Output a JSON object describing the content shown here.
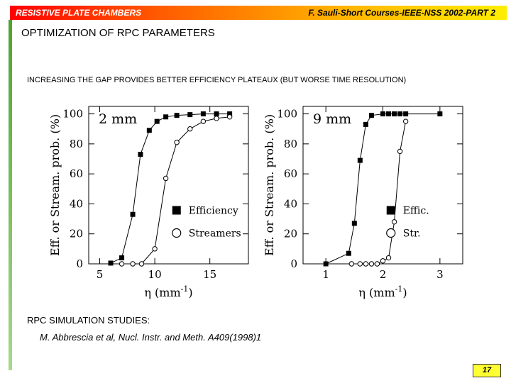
{
  "header": {
    "left": "RESISTIVE PLATE CHAMBERS",
    "right": "F. Sauli-Short Courses-IEEE-NSS 2002-PART 2"
  },
  "slide": {
    "title": "OPTIMIZATION OF RPC PARAMETERS",
    "subtitle": "INCREASING THE GAP PROVIDES BETTER EFFICIENCY PLATEAUX (BUT WORSE TIME RESOLUTION)",
    "sim_heading": "RPC SIMULATION STUDIES:",
    "reference": "M. Abbrescia et al, Nucl. Instr. and Meth. A409(1998)1",
    "page_number": "17"
  },
  "chart_data": [
    {
      "type": "scatter",
      "annotation": "2 mm",
      "xlabel": "η (mm",
      "xlabel_sup": "-1",
      "xlabel_end": ")",
      "ylabel": "Eff. or Stream. prob. (%)",
      "xlim": [
        4,
        18.5
      ],
      "ylim": [
        0,
        105
      ],
      "xticks": [
        5,
        10,
        15
      ],
      "yticks": [
        0,
        20,
        40,
        60,
        80,
        100
      ],
      "legend_position": "lower-right",
      "series": [
        {
          "name": "Efficiency",
          "marker": "filled-square",
          "x": [
            6,
            7,
            8,
            8.7,
            9.5,
            10.2,
            11,
            12,
            13.2,
            14.4,
            15.6,
            16.8
          ],
          "y": [
            0.5,
            4,
            33,
            73,
            89,
            95,
            98,
            99,
            99.5,
            100,
            100,
            100
          ]
        },
        {
          "name": "Streamers",
          "marker": "open-circle",
          "x": [
            7,
            8,
            8.8,
            10,
            11,
            12,
            13.2,
            14.4,
            15.6,
            16.8
          ],
          "y": [
            0,
            0,
            0,
            10,
            57,
            81,
            90,
            95,
            97,
            98
          ]
        }
      ]
    },
    {
      "type": "scatter",
      "annotation": "9 mm",
      "xlabel": "η (mm",
      "xlabel_sup": "-1",
      "xlabel_end": ")",
      "ylabel": "Eff. or Stream. prob. (%)",
      "xlim": [
        0.6,
        3.4
      ],
      "ylim": [
        0,
        105
      ],
      "xticks": [
        1,
        2,
        3
      ],
      "yticks": [
        0,
        20,
        40,
        60,
        80,
        100
      ],
      "legend_position": "lower-right",
      "series": [
        {
          "name": "Effic.",
          "marker": "filled-square",
          "x": [
            1,
            1.4,
            1.5,
            1.6,
            1.7,
            1.8,
            2.0,
            2.1,
            2.2,
            2.3,
            2.4,
            3.0
          ],
          "y": [
            0,
            7,
            27,
            69,
            93,
            99,
            100,
            100,
            100,
            100,
            100,
            100
          ]
        },
        {
          "name": "Str.",
          "marker": "open-circle",
          "x": [
            1.45,
            1.6,
            1.7,
            1.8,
            1.9,
            2.0,
            2.1,
            2.2,
            2.3,
            2.4
          ],
          "y": [
            0,
            0,
            0,
            0,
            0,
            2,
            4,
            28,
            75,
            95
          ]
        }
      ]
    }
  ]
}
